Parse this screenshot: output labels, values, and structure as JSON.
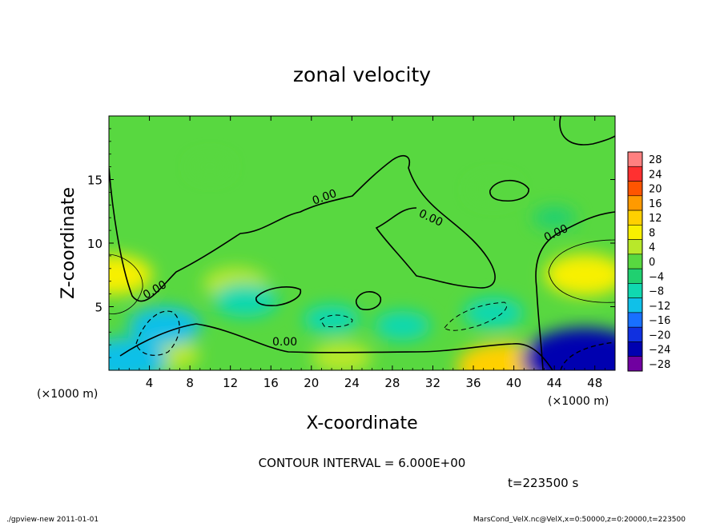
{
  "chart_data": {
    "type": "heatmap",
    "title": "zonal velocity",
    "xlabel": "X-coordinate",
    "ylabel": "Z-coordinate",
    "x_unit": "(×1000 m)",
    "y_unit": "(×1000 m)",
    "xlim": [
      0,
      50
    ],
    "ylim": [
      0,
      20
    ],
    "x_ticks": [
      4,
      8,
      12,
      16,
      20,
      24,
      28,
      32,
      36,
      40,
      44,
      48
    ],
    "y_ticks": [
      5,
      10,
      15
    ],
    "colorbar": {
      "levels": [
        28,
        24,
        20,
        16,
        12,
        8,
        4,
        0,
        -4,
        -8,
        -12,
        -16,
        -20,
        -24,
        -28
      ],
      "colors": [
        "#ff8080",
        "#ff3030",
        "#ff5500",
        "#ff9a00",
        "#ffd000",
        "#f8f000",
        "#b8e82a",
        "#58d840",
        "#20d070",
        "#10d8b0",
        "#10c0e8",
        "#1870ff",
        "#1030e0",
        "#0000b0",
        "#7000a0"
      ]
    },
    "contour_labels": [
      "0.00",
      "0.00",
      "0.00",
      "0.00",
      "0.00"
    ],
    "features": [
      {
        "x": 0.5,
        "z": 7.5,
        "value": 10
      },
      {
        "x": 47,
        "z": 7.5,
        "value": 11
      },
      {
        "x": 12.5,
        "z": 6.8,
        "value": 7
      },
      {
        "x": 39,
        "z": 0.3,
        "value": 14
      },
      {
        "x": 23,
        "z": 1.0,
        "value": 6
      },
      {
        "x": 6,
        "z": 1.2,
        "value": 6
      },
      {
        "x": 5.5,
        "z": 3.5,
        "value": -9
      },
      {
        "x": 1.5,
        "z": 0.8,
        "value": -12
      },
      {
        "x": 47,
        "z": 0.8,
        "value": -22
      },
      {
        "x": 13.5,
        "z": 5.5,
        "value": -7
      },
      {
        "x": 38,
        "z": 4.5,
        "value": -6
      },
      {
        "x": 29,
        "z": 3.5,
        "value": -5
      },
      {
        "x": 22,
        "z": 4.0,
        "value": -5
      },
      {
        "x": 38,
        "z": 14.2,
        "value": 3
      },
      {
        "x": 10,
        "z": 16,
        "value": 1
      },
      {
        "x": 44,
        "z": 12,
        "value": -2
      }
    ],
    "contour_interval_text": "CONTOUR INTERVAL = 6.000E+00",
    "time_text": "t=223500 s"
  },
  "footer": {
    "left": "./gpview-new  2011-01-01",
    "right": "MarsCond_VelX.nc@VelX,x=0:50000,z=0:20000,t=223500"
  }
}
